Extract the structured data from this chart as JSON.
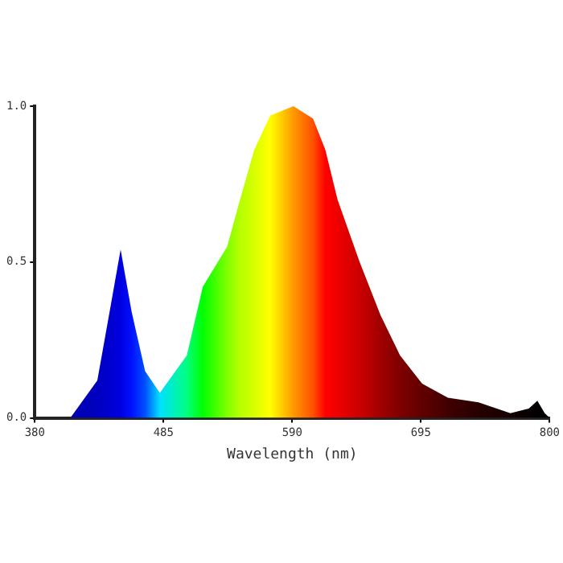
{
  "chart_data": {
    "type": "area",
    "xlabel": "Wavelength (nm)",
    "xlim": [
      380,
      800
    ],
    "ylim": [
      0,
      1
    ],
    "xticks": [
      380,
      485,
      590,
      695,
      800
    ],
    "yticks": [
      {
        "value": 0,
        "label": "0.0"
      },
      {
        "value": 0.5,
        "label": "0.5"
      },
      {
        "value": 1,
        "label": "1.0"
      }
    ],
    "grid": false,
    "legend": false,
    "series": [
      {
        "x": [
          380,
          409,
          431,
          441,
          450,
          459,
          470,
          482,
          504,
          517,
          537,
          546,
          559,
          572,
          591,
          607,
          617,
          627,
          645,
          662,
          678,
          696,
          717,
          742,
          768,
          783,
          790,
          796,
          800
        ],
        "values": [
          0,
          0,
          0.12,
          0.34,
          0.54,
          0.34,
          0.15,
          0.08,
          0.2,
          0.42,
          0.55,
          0.68,
          0.86,
          0.97,
          1,
          0.96,
          0.86,
          0.7,
          0.5,
          0.33,
          0.2,
          0.11,
          0.065,
          0.05,
          0.015,
          0.03,
          0.055,
          0.015,
          0
        ],
        "colors": [
          "#0000aa",
          "#0000b0",
          "#0000c0",
          "#0000d0",
          "#0000e0",
          "#0010ff",
          "#0050ff",
          "#00e0ff",
          "#00ff80",
          "#00ff00",
          "#80ff00",
          "#b0ff00",
          "#d8ff00",
          "#ffff00",
          "#ff9900",
          "#ff5000",
          "#ff0000",
          "#ee0000",
          "#cc0000",
          "#a00000",
          "#800000",
          "#600000",
          "#400000",
          "#280000",
          "#140000",
          "#080000",
          "#000000",
          "#000000",
          "#000000"
        ]
      }
    ]
  }
}
